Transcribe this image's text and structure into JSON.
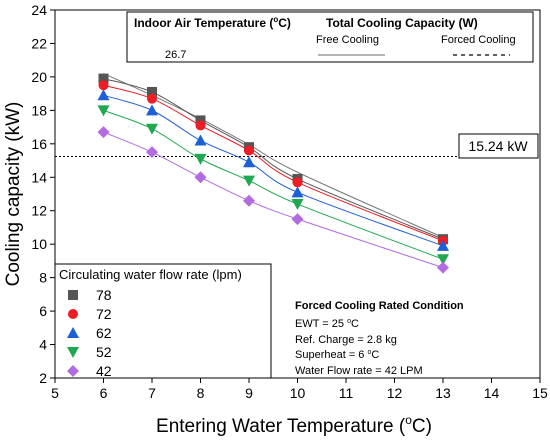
{
  "chart_data": {
    "type": "scatter",
    "xlabel": "Entering Water Temperature (",
    "xlabel_sup": "o",
    "xlabel_tail": "C)",
    "ylabel": "Cooling capacity (kW)",
    "xlim": [
      5,
      15
    ],
    "ylim": [
      2,
      24
    ],
    "x_ticks": [
      5,
      6,
      7,
      8,
      9,
      10,
      11,
      12,
      13,
      14,
      15
    ],
    "y_ticks": [
      2,
      4,
      6,
      8,
      10,
      12,
      14,
      16,
      18,
      20,
      22,
      24
    ],
    "x": [
      6,
      7,
      8,
      9,
      10,
      13
    ],
    "series": [
      {
        "name": "78",
        "color": "#555555",
        "marker": "square",
        "values": [
          19.9,
          19.1,
          17.4,
          15.8,
          13.9,
          10.3
        ]
      },
      {
        "name": "72",
        "color": "#ee1c24",
        "marker": "circle",
        "values": [
          19.5,
          18.7,
          17.1,
          15.6,
          13.7,
          10.2
        ]
      },
      {
        "name": "62",
        "color": "#1c5fd6",
        "marker": "triangle-up",
        "values": [
          18.9,
          18.0,
          16.2,
          14.9,
          13.1,
          9.9
        ]
      },
      {
        "name": "52",
        "color": "#1fa84f",
        "marker": "triangle-down",
        "values": [
          18.0,
          16.9,
          15.1,
          13.8,
          12.4,
          9.1
        ]
      },
      {
        "name": "42",
        "color": "#b36be0",
        "marker": "diamond",
        "values": [
          16.7,
          15.5,
          14.0,
          12.6,
          11.5,
          8.6
        ]
      }
    ],
    "free_cooling_fit": [
      20.2,
      18.9,
      17.5,
      15.95,
      14.3,
      10.4
    ],
    "reference_line": {
      "y": 15.24,
      "label": "15.24 kW"
    },
    "top_legend": {
      "col1_header": "Indoor Air Temperature (",
      "col1_sup": "o",
      "col1_tail": "C)",
      "col1_value": "26.7",
      "col2_header": "Total Cooling Capacity (W)",
      "free_label": "Free Cooling",
      "forced_label": "Forced Cooling"
    },
    "series_legend_title": "Circulating water flow rate (lpm)",
    "condition_box": {
      "title": "Forced Cooling Rated Condition",
      "lines": [
        {
          "pre": "EWT = 25 ",
          "sup": "o",
          "post": "C"
        },
        {
          "pre": "Ref. Charge = 2.8 kg",
          "sup": "",
          "post": ""
        },
        {
          "pre": "Superheat = 6 ",
          "sup": "o",
          "post": "C"
        },
        {
          "pre": "Water Flow rate = 42 LPM",
          "sup": "",
          "post": ""
        }
      ]
    }
  }
}
